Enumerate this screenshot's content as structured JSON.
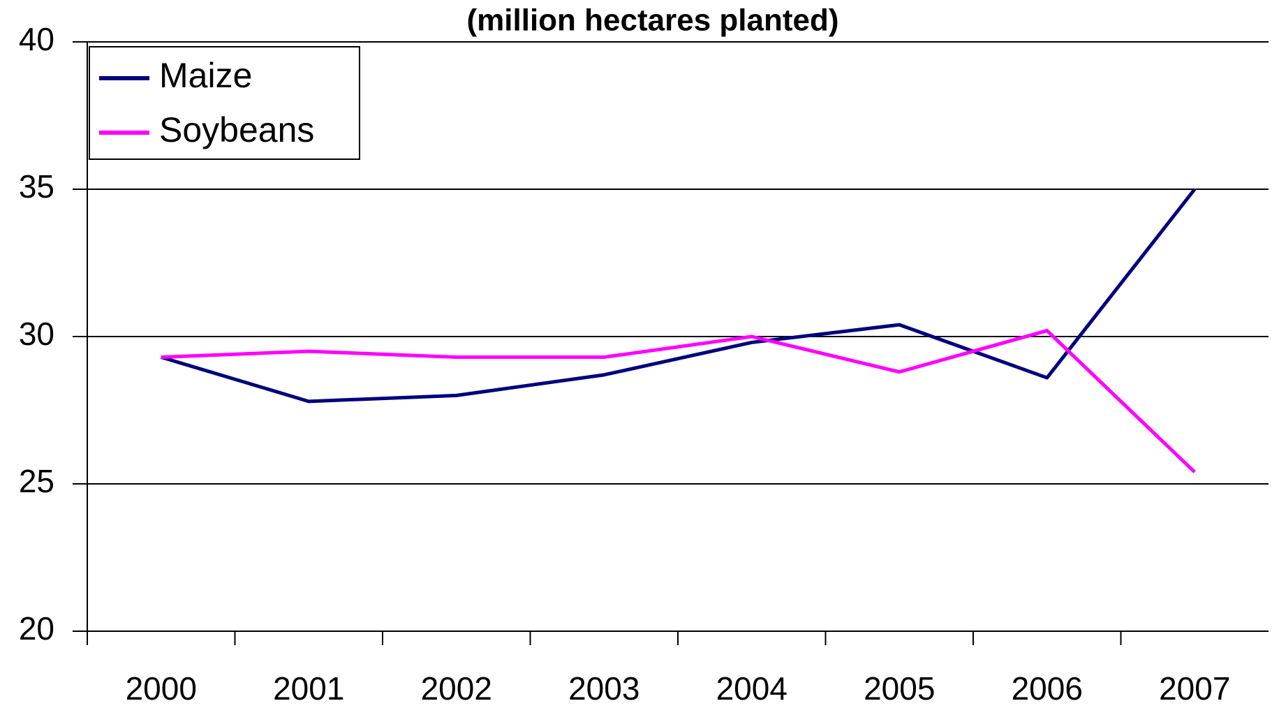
{
  "chart_data": {
    "type": "line",
    "title": "(million hectares planted)",
    "categories": [
      "2000",
      "2001",
      "2002",
      "2003",
      "2004",
      "2005",
      "2006",
      "2007"
    ],
    "series": [
      {
        "name": "Maize",
        "color": "#000080",
        "values": [
          29.3,
          27.8,
          28.0,
          28.7,
          29.8,
          30.4,
          28.6,
          35.0
        ]
      },
      {
        "name": "Soybeans",
        "color": "#ff00ff",
        "values": [
          29.3,
          29.5,
          29.3,
          29.3,
          30.0,
          28.8,
          30.2,
          25.4
        ]
      }
    ],
    "ylim": [
      20,
      40
    ],
    "yticks": [
      20,
      25,
      30,
      35,
      40
    ],
    "grid": true,
    "legend": "top-left"
  }
}
